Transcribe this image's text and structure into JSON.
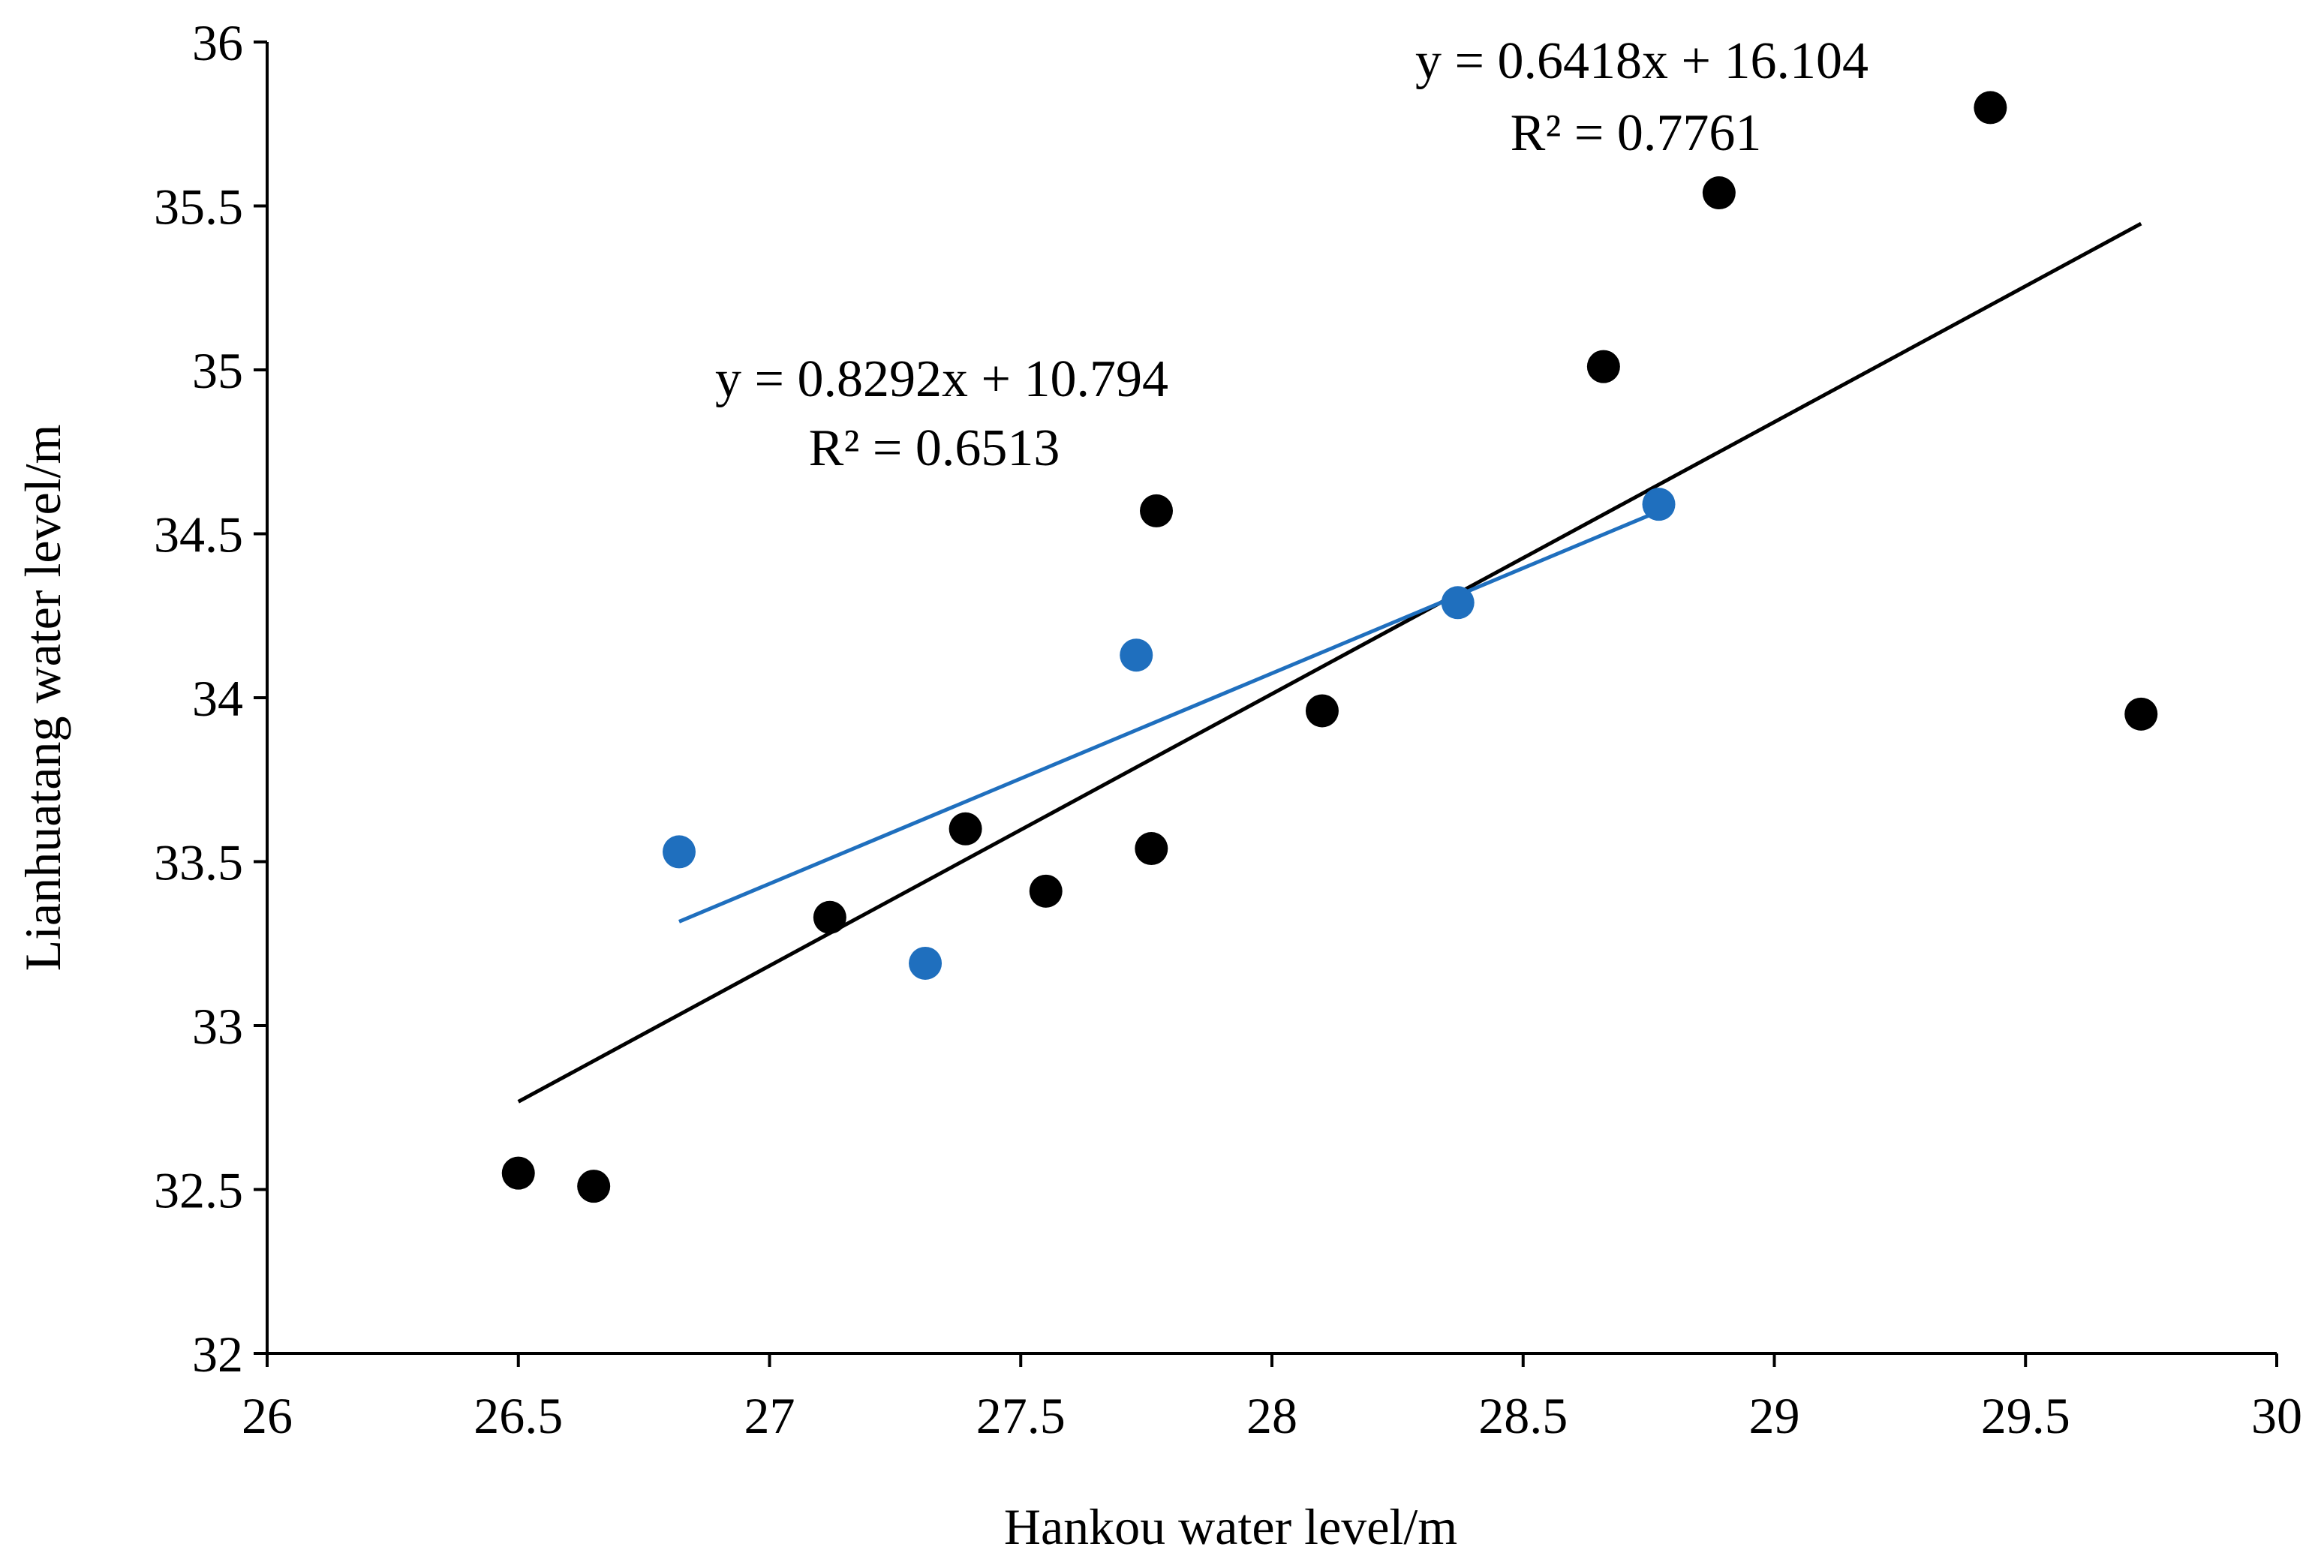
{
  "chart_data": {
    "type": "scatter",
    "title": "",
    "xlabel": "Hankou water level/m",
    "ylabel": "Lianhuatang water level/m",
    "xlim": [
      26,
      30
    ],
    "ylim": [
      32,
      36
    ],
    "x_ticks": [
      "26",
      "26.5",
      "27",
      "27.5",
      "28",
      "28.5",
      "29",
      "29.5",
      "30"
    ],
    "y_ticks": [
      "32",
      "32.5",
      "33",
      "33.5",
      "34",
      "34.5",
      "35",
      "35.5",
      "36"
    ],
    "grid": false,
    "legend": "none",
    "series": [
      {
        "name": "black",
        "color": "#000000",
        "points": [
          {
            "x": 26.5,
            "y": 32.55
          },
          {
            "x": 26.65,
            "y": 32.51
          },
          {
            "x": 27.12,
            "y": 33.33
          },
          {
            "x": 27.39,
            "y": 33.6
          },
          {
            "x": 27.55,
            "y": 33.41
          },
          {
            "x": 27.76,
            "y": 33.54
          },
          {
            "x": 27.77,
            "y": 34.57
          },
          {
            "x": 28.1,
            "y": 33.96
          },
          {
            "x": 28.66,
            "y": 35.01
          },
          {
            "x": 28.89,
            "y": 35.54
          },
          {
            "x": 29.43,
            "y": 35.8
          },
          {
            "x": 29.73,
            "y": 33.95
          }
        ],
        "trendline": {
          "x_range": [
            26.5,
            29.73
          ],
          "slope": 0.8292,
          "intercept": 10.794,
          "equation": "y = 0.8292x + 10.794",
          "r2": "R² = 0.6513"
        }
      },
      {
        "name": "blue",
        "color": "#1f6fbe",
        "points": [
          {
            "x": 26.82,
            "y": 33.53
          },
          {
            "x": 27.31,
            "y": 33.19
          },
          {
            "x": 27.73,
            "y": 34.13
          },
          {
            "x": 28.37,
            "y": 34.29
          },
          {
            "x": 28.77,
            "y": 34.59
          }
        ],
        "trendline": {
          "x_range": [
            26.82,
            28.77
          ],
          "slope": 0.6418,
          "intercept": 16.104,
          "equation": "y = 0.6418x + 16.104",
          "r2": "R² = 0.7761"
        }
      }
    ]
  }
}
